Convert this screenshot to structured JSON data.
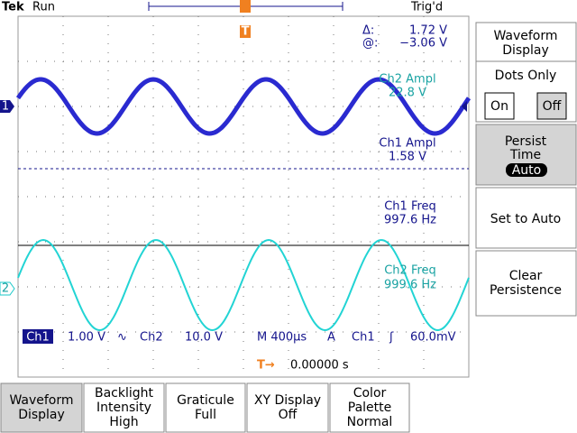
{
  "header": {
    "brand": "Tek",
    "status": "Run",
    "trigger_status": "Trig'd",
    "trigger_marker": "T"
  },
  "cursor_readout": {
    "delta_label": "Δ:",
    "delta_value": "1.72 V",
    "at_label": "@:",
    "at_value": "−3.06 V"
  },
  "channel_markers": {
    "ch1": "1",
    "ch2": "2"
  },
  "measurements": [
    {
      "label": "Ch2 Ampl",
      "value": "22.8 V"
    },
    {
      "label": "Ch1 Ampl",
      "value": "1.58 V"
    },
    {
      "label": "Ch1 Freq",
      "value": "997.6 Hz"
    },
    {
      "label": "Ch2 Freq",
      "value": "999.6 Hz"
    }
  ],
  "status_line": {
    "ch1": "Ch1",
    "ch1_scale": "1.00 V",
    "bw_symbol": "∿",
    "ch2": "Ch2",
    "ch2_scale": "10.0 V",
    "timebase": "M 400µs",
    "trigger_mode": "A",
    "trigger_source": "Ch1",
    "slope_symbol": "ʃ",
    "trigger_level": "60.0mV"
  },
  "trigger_time": {
    "icon": "T→",
    "value": "0.00000 s"
  },
  "side_menu": {
    "title": [
      "Waveform",
      "Display"
    ],
    "dots_only": {
      "label": "Dots Only",
      "on": "On",
      "off": "Off"
    },
    "persist": {
      "label": [
        "Persist",
        "Time"
      ],
      "value": "Auto"
    },
    "set_to_auto": "Set to Auto",
    "clear": [
      "Clear",
      "Persistence"
    ]
  },
  "bottom_menu": [
    [
      "Waveform",
      "Display"
    ],
    [
      "Backlight",
      "Intensity",
      "High"
    ],
    [
      "Graticule",
      "Full"
    ],
    [
      "XY Display",
      "Off"
    ],
    [
      "Color",
      "Palette",
      "Normal"
    ]
  ]
}
